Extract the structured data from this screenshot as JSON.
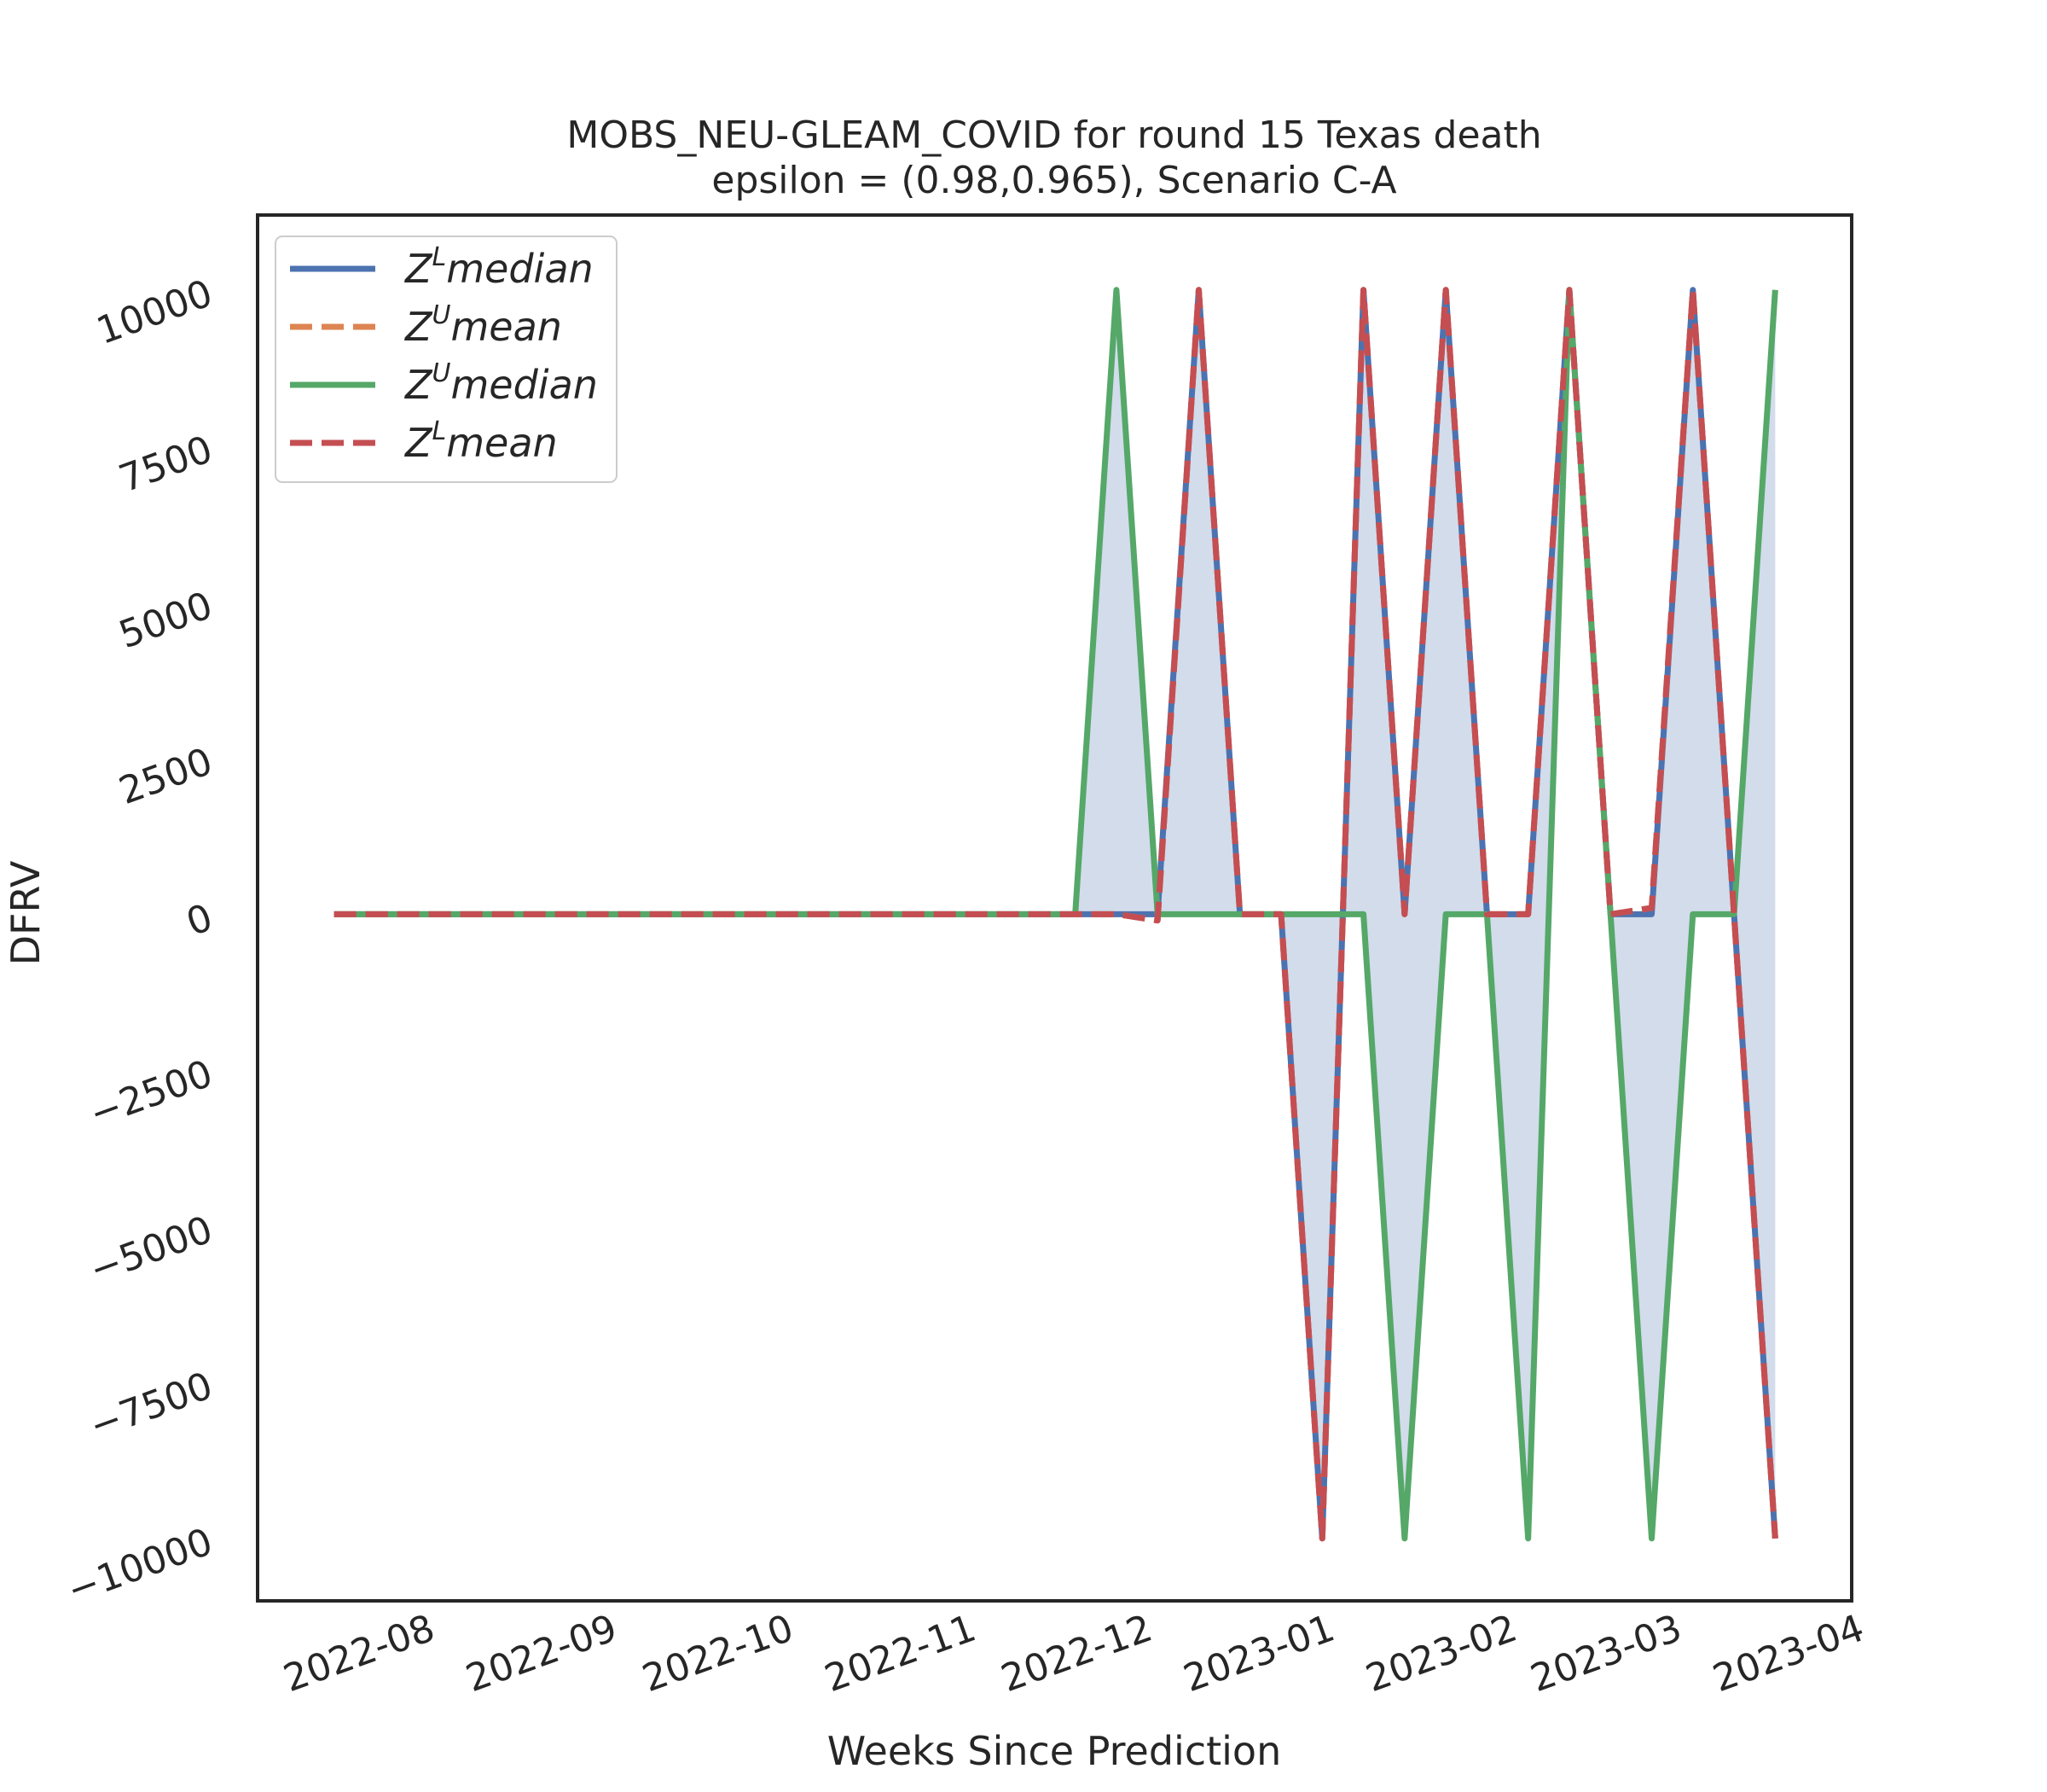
{
  "chart_data": {
    "type": "line",
    "title_line1": "MOBS_NEU-GLEAM_COVID for round 15 Texas  death",
    "title_line2": "epsilon = (0.98,0.965), Scenario C-A",
    "xlabel": "Weeks Since Prediction",
    "ylabel": "DFRV",
    "x_tick_labels": [
      "2022-08",
      "2022-09",
      "2022-10",
      "2022-11",
      "2022-12",
      "2023-01",
      "2023-02",
      "2023-03",
      "2023-04"
    ],
    "x_tick_dates": [
      "2022-08-01",
      "2022-09-01",
      "2022-10-01",
      "2022-11-01",
      "2022-12-01",
      "2023-01-01",
      "2023-02-01",
      "2023-03-01",
      "2023-04-01"
    ],
    "y_ticks": [
      10000,
      7500,
      5000,
      2500,
      0,
      -2500,
      -5000,
      -7500,
      -10000
    ],
    "y_tick_labels": [
      "10000",
      "7500",
      "5000",
      "2500",
      "0",
      "−2500",
      "−5000",
      "−7500",
      "−10000"
    ],
    "ylim": [
      -11000,
      11200
    ],
    "xlim": [
      "2022-07-07",
      "2023-04-04"
    ],
    "grid": false,
    "legend_placement": "top-left",
    "x": [
      "2022-07-20",
      "2022-07-27",
      "2022-08-03",
      "2022-08-10",
      "2022-08-17",
      "2022-08-24",
      "2022-08-31",
      "2022-09-07",
      "2022-09-14",
      "2022-09-21",
      "2022-09-28",
      "2022-10-05",
      "2022-10-12",
      "2022-10-19",
      "2022-10-26",
      "2022-11-02",
      "2022-11-09",
      "2022-11-16",
      "2022-11-23",
      "2022-11-30",
      "2022-12-07",
      "2022-12-14",
      "2022-12-21",
      "2022-12-28",
      "2023-01-04",
      "2023-01-11",
      "2023-01-18",
      "2023-01-25",
      "2023-02-01",
      "2023-02-08",
      "2023-02-15",
      "2023-02-22",
      "2023-03-01",
      "2023-03-08",
      "2023-03-15",
      "2023-03-22"
    ],
    "series": [
      {
        "name_base": "Z",
        "name_sup": "L",
        "name_rest": "median",
        "color": "#4c72b0",
        "dash": "solid",
        "values": [
          0,
          0,
          0,
          0,
          0,
          0,
          0,
          0,
          0,
          0,
          0,
          0,
          0,
          0,
          0,
          0,
          0,
          0,
          0,
          0,
          0,
          10000,
          0,
          0,
          -10000,
          10000,
          0,
          10000,
          0,
          0,
          10000,
          0,
          0,
          10000,
          0,
          -10000
        ]
      },
      {
        "name_base": "Z",
        "name_sup": "U",
        "name_rest": "mean",
        "color": "#dd8452",
        "dash": "dashed",
        "values": [
          0,
          0,
          0,
          0,
          0,
          0,
          0,
          0,
          0,
          0,
          0,
          0,
          0,
          0,
          0,
          0,
          0,
          0,
          0,
          0,
          -100,
          10000,
          0,
          0,
          -10000,
          10000,
          0,
          10000,
          0,
          0,
          10000,
          0,
          100,
          10000,
          0,
          -10000
        ]
      },
      {
        "name_base": "Z",
        "name_sup": "U",
        "name_rest": "median",
        "color": "#55a868",
        "dash": "solid",
        "values": [
          0,
          0,
          0,
          0,
          0,
          0,
          0,
          0,
          0,
          0,
          0,
          0,
          0,
          0,
          0,
          0,
          0,
          0,
          0,
          10000,
          0,
          0,
          0,
          0,
          0,
          0,
          -10000,
          0,
          0,
          -10000,
          10000,
          0,
          -10000,
          0,
          0,
          10000
        ]
      },
      {
        "name_base": "Z",
        "name_sup": "L",
        "name_rest": "mean",
        "color": "#c44e52",
        "dash": "dashed",
        "values": [
          0,
          0,
          0,
          0,
          0,
          0,
          0,
          0,
          0,
          0,
          0,
          0,
          0,
          0,
          0,
          0,
          0,
          0,
          0,
          0,
          -100,
          10000,
          0,
          0,
          -10000,
          10000,
          0,
          10000,
          0,
          0,
          10000,
          0,
          100,
          10000,
          0,
          -10000
        ]
      }
    ],
    "fill_between": {
      "color": "#4c72b0",
      "opacity": 0.25,
      "upper_series": 2,
      "lower_series": 0
    }
  }
}
